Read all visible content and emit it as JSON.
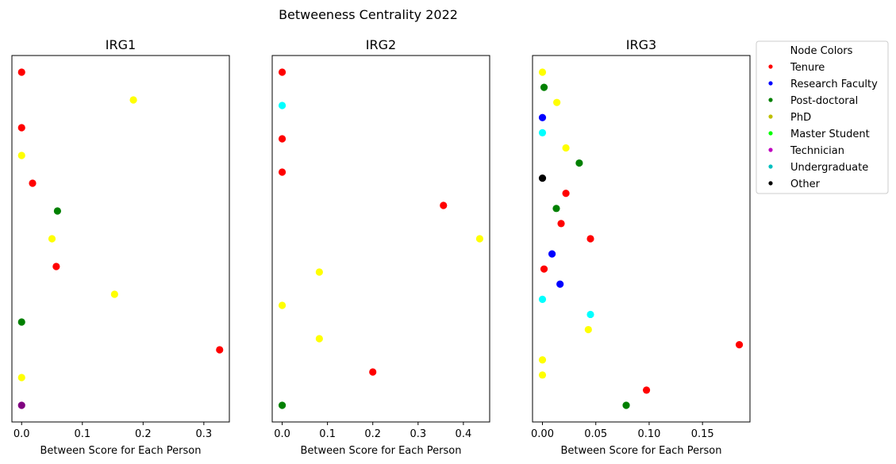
{
  "chart_data": {
    "type": "scatter",
    "title": "Betweeness Centrality 2022",
    "legend": {
      "title": "Node Colors",
      "placement": "right",
      "entries": [
        {
          "label": "Tenure",
          "color": "#ff0000"
        },
        {
          "label": "Research Faculty",
          "color": "#0000ff"
        },
        {
          "label": "Post-doctoral",
          "color": "#008000"
        },
        {
          "label": "PhD",
          "color": "#bfbf00"
        },
        {
          "label": "Master Student",
          "color": "#00ff00"
        },
        {
          "label": "Technician",
          "color": "#bf00bf"
        },
        {
          "label": "Undergraduate",
          "color": "#00bfbf"
        },
        {
          "label": "Other",
          "color": "#000000"
        }
      ]
    },
    "panels": [
      {
        "title": "IRG1",
        "xlabel": "Between Score for Each Person",
        "xlim": [
          -0.016,
          0.342
        ],
        "xticks": [
          0.0,
          0.1,
          0.2,
          0.3
        ],
        "xtick_labels": [
          "0.0",
          "0.1",
          "0.2",
          "0.3"
        ],
        "y_count": 13,
        "points": [
          {
            "x": 0.0,
            "color": "#ff0000"
          },
          {
            "x": 0.184,
            "color": "#ffff00"
          },
          {
            "x": 0.0,
            "color": "#ff0000"
          },
          {
            "x": 0.0,
            "color": "#ffff00"
          },
          {
            "x": 0.018,
            "color": "#ff0000"
          },
          {
            "x": 0.059,
            "color": "#008000"
          },
          {
            "x": 0.05,
            "color": "#ffff00"
          },
          {
            "x": 0.057,
            "color": "#ff0000"
          },
          {
            "x": 0.153,
            "color": "#ffff00"
          },
          {
            "x": 0.0,
            "color": "#008000"
          },
          {
            "x": 0.326,
            "color": "#ff0000"
          },
          {
            "x": 0.0,
            "color": "#ffff00"
          },
          {
            "x": 0.0,
            "color": "#800080"
          }
        ]
      },
      {
        "title": "IRG2",
        "xlabel": "Between Score for Each Person",
        "xlim": [
          -0.022,
          0.458
        ],
        "xticks": [
          0.0,
          0.1,
          0.2,
          0.3,
          0.4
        ],
        "xtick_labels": [
          "0.0",
          "0.1",
          "0.2",
          "0.3",
          "0.4"
        ],
        "y_count": 11,
        "points": [
          {
            "x": 0.0,
            "color": "#ff0000"
          },
          {
            "x": 0.0,
            "color": "#00ffff"
          },
          {
            "x": 0.0,
            "color": "#ff0000"
          },
          {
            "x": 0.0,
            "color": "#ff0000"
          },
          {
            "x": 0.356,
            "color": "#ff0000"
          },
          {
            "x": 0.436,
            "color": "#ffff00"
          },
          {
            "x": 0.082,
            "color": "#ffff00"
          },
          {
            "x": 0.0,
            "color": "#ffff00"
          },
          {
            "x": 0.082,
            "color": "#ffff00"
          },
          {
            "x": 0.2,
            "color": "#ff0000"
          },
          {
            "x": 0.0,
            "color": "#008000"
          }
        ]
      },
      {
        "title": "IRG3",
        "xlabel": "Between Score for Each Person",
        "xlim": [
          -0.0093,
          0.1945
        ],
        "xticks": [
          0.0,
          0.05,
          0.1,
          0.15
        ],
        "xtick_labels": [
          "0.00",
          "0.05",
          "0.10",
          "0.15"
        ],
        "y_count": 23,
        "points": [
          {
            "x": 0.0,
            "color": "#ffff00"
          },
          {
            "x": 0.0015,
            "color": "#008000"
          },
          {
            "x": 0.0135,
            "color": "#ffff00"
          },
          {
            "x": 0.0,
            "color": "#0000ff"
          },
          {
            "x": 0.0,
            "color": "#00ffff"
          },
          {
            "x": 0.022,
            "color": "#ffff00"
          },
          {
            "x": 0.0345,
            "color": "#008000"
          },
          {
            "x": 0.0,
            "color": "#000000"
          },
          {
            "x": 0.022,
            "color": "#ff0000"
          },
          {
            "x": 0.013,
            "color": "#008000"
          },
          {
            "x": 0.0175,
            "color": "#ff0000"
          },
          {
            "x": 0.045,
            "color": "#ff0000"
          },
          {
            "x": 0.009,
            "color": "#0000ff"
          },
          {
            "x": 0.0015,
            "color": "#ff0000"
          },
          {
            "x": 0.0165,
            "color": "#0000ff"
          },
          {
            "x": 0.0,
            "color": "#00ffff"
          },
          {
            "x": 0.045,
            "color": "#00ffff"
          },
          {
            "x": 0.043,
            "color": "#ffff00"
          },
          {
            "x": 0.1845,
            "color": "#ff0000"
          },
          {
            "x": 0.0,
            "color": "#ffff00"
          },
          {
            "x": 0.0,
            "color": "#ffff00"
          },
          {
            "x": 0.0975,
            "color": "#ff0000"
          },
          {
            "x": 0.0785,
            "color": "#008000"
          }
        ]
      }
    ]
  }
}
